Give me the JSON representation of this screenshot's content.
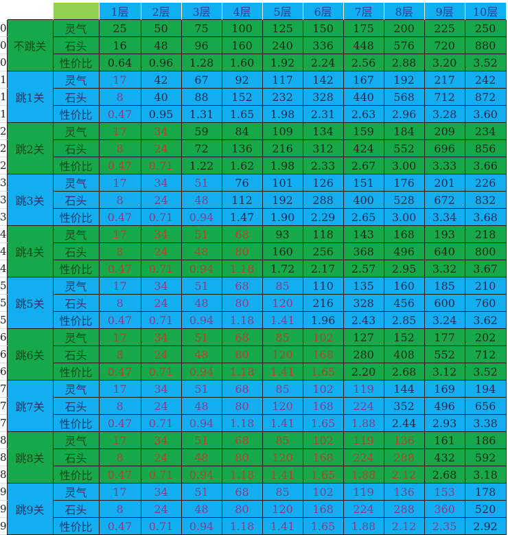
{
  "colors": {
    "green": "#17a84a",
    "blue": "#12aef0",
    "header_corner": "#92d050",
    "header_text": "#1f3c9a",
    "skipped_text_green": "#b0472e",
    "skipped_text_blue": "#8a3c8c"
  },
  "header": {
    "layers": [
      "1层",
      "2层",
      "3层",
      "4层",
      "5层",
      "6层",
      "7层",
      "8层",
      "9层",
      "10层"
    ]
  },
  "row_types": [
    "灵气",
    "石头",
    "性价比"
  ],
  "groups": [
    {
      "name": "不跳关",
      "stub": "0",
      "color": "green",
      "skipped": 0,
      "rows": [
        [
          "25",
          "50",
          "75",
          "100",
          "125",
          "150",
          "175",
          "200",
          "225",
          "250"
        ],
        [
          "16",
          "48",
          "96",
          "160",
          "240",
          "336",
          "448",
          "576",
          "720",
          "880"
        ],
        [
          "0.64",
          "0.96",
          "1.28",
          "1.60",
          "1.92",
          "2.24",
          "2.56",
          "2.88",
          "3.20",
          "3.52"
        ]
      ]
    },
    {
      "name": "跳1关",
      "stub": "1",
      "color": "blue",
      "skipped": 1,
      "rows": [
        [
          "17",
          "42",
          "67",
          "92",
          "117",
          "142",
          "167",
          "192",
          "217",
          "242"
        ],
        [
          "8",
          "40",
          "88",
          "152",
          "232",
          "328",
          "440",
          "568",
          "712",
          "872"
        ],
        [
          "0.47",
          "0.95",
          "1.31",
          "1.65",
          "1.98",
          "2.31",
          "2.63",
          "2.96",
          "3.28",
          "3.60"
        ]
      ]
    },
    {
      "name": "跳2关",
      "stub": "2",
      "color": "green",
      "skipped": 2,
      "rows": [
        [
          "17",
          "34",
          "59",
          "84",
          "109",
          "134",
          "159",
          "184",
          "209",
          "234"
        ],
        [
          "8",
          "24",
          "72",
          "136",
          "216",
          "312",
          "424",
          "552",
          "696",
          "856"
        ],
        [
          "0.47",
          "0.71",
          "1.22",
          "1.62",
          "1.98",
          "2.33",
          "2.67",
          "3.00",
          "3.33",
          "3.66"
        ]
      ]
    },
    {
      "name": "跳3关",
      "stub": "3",
      "color": "blue",
      "skipped": 3,
      "rows": [
        [
          "17",
          "34",
          "51",
          "76",
          "101",
          "126",
          "151",
          "176",
          "201",
          "226"
        ],
        [
          "8",
          "24",
          "48",
          "112",
          "192",
          "288",
          "400",
          "528",
          "672",
          "832"
        ],
        [
          "0.47",
          "0.71",
          "0.94",
          "1.47",
          "1.90",
          "2.29",
          "2.65",
          "3.00",
          "3.34",
          "3.68"
        ]
      ]
    },
    {
      "name": "跳4关",
      "stub": "4",
      "color": "green",
      "skipped": 4,
      "rows": [
        [
          "17",
          "34",
          "51",
          "68",
          "93",
          "118",
          "143",
          "168",
          "193",
          "218"
        ],
        [
          "8",
          "24",
          "48",
          "80",
          "160",
          "256",
          "368",
          "496",
          "640",
          "800"
        ],
        [
          "0.47",
          "0.71",
          "0.94",
          "1.18",
          "1.72",
          "2.17",
          "2.57",
          "2.95",
          "3.32",
          "3.67"
        ]
      ]
    },
    {
      "name": "跳5关",
      "stub": "5",
      "color": "blue",
      "skipped": 5,
      "rows": [
        [
          "17",
          "34",
          "51",
          "68",
          "85",
          "110",
          "135",
          "160",
          "185",
          "210"
        ],
        [
          "8",
          "24",
          "48",
          "80",
          "120",
          "216",
          "328",
          "456",
          "600",
          "760"
        ],
        [
          "0.47",
          "0.71",
          "0.94",
          "1.18",
          "1.41",
          "1.96",
          "2.43",
          "2.85",
          "3.24",
          "3.62"
        ]
      ]
    },
    {
      "name": "跳6关",
      "stub": "6",
      "color": "green",
      "skipped": 6,
      "rows": [
        [
          "17",
          "34",
          "51",
          "68",
          "85",
          "102",
          "127",
          "152",
          "177",
          "202"
        ],
        [
          "8",
          "24",
          "48",
          "80",
          "120",
          "168",
          "280",
          "408",
          "552",
          "712"
        ],
        [
          "0.47",
          "0.71",
          "0.94",
          "1.18",
          "1.41",
          "1.65",
          "2.20",
          "2.68",
          "3.12",
          "3.52"
        ]
      ]
    },
    {
      "name": "跳7关",
      "stub": "7",
      "color": "blue",
      "skipped": 7,
      "rows": [
        [
          "17",
          "34",
          "51",
          "68",
          "85",
          "102",
          "119",
          "144",
          "169",
          "194"
        ],
        [
          "8",
          "24",
          "48",
          "80",
          "120",
          "168",
          "224",
          "352",
          "496",
          "656"
        ],
        [
          "0.47",
          "0.71",
          "0.94",
          "1.18",
          "1.41",
          "1.65",
          "1.88",
          "2.44",
          "2.93",
          "3.38"
        ]
      ]
    },
    {
      "name": "跳8关",
      "stub": "8",
      "color": "green",
      "skipped": 8,
      "rows": [
        [
          "17",
          "34",
          "51",
          "68",
          "85",
          "102",
          "119",
          "136",
          "161",
          "186"
        ],
        [
          "8",
          "24",
          "48",
          "80",
          "120",
          "168",
          "224",
          "288",
          "432",
          "592"
        ],
        [
          "0.47",
          "0.71",
          "0.94",
          "1.18",
          "1.41",
          "1.65",
          "1.88",
          "2.12",
          "2.68",
          "3.18"
        ]
      ]
    },
    {
      "name": "跳9关",
      "stub": "9",
      "color": "blue",
      "skipped": 9,
      "rows": [
        [
          "17",
          "34",
          "51",
          "68",
          "85",
          "102",
          "119",
          "136",
          "153",
          "178"
        ],
        [
          "8",
          "24",
          "48",
          "80",
          "120",
          "168",
          "224",
          "288",
          "360",
          "520"
        ],
        [
          "0.47",
          "0.71",
          "0.94",
          "1.18",
          "1.41",
          "1.65",
          "1.88",
          "2.12",
          "2.35",
          "2.92"
        ]
      ]
    }
  ]
}
